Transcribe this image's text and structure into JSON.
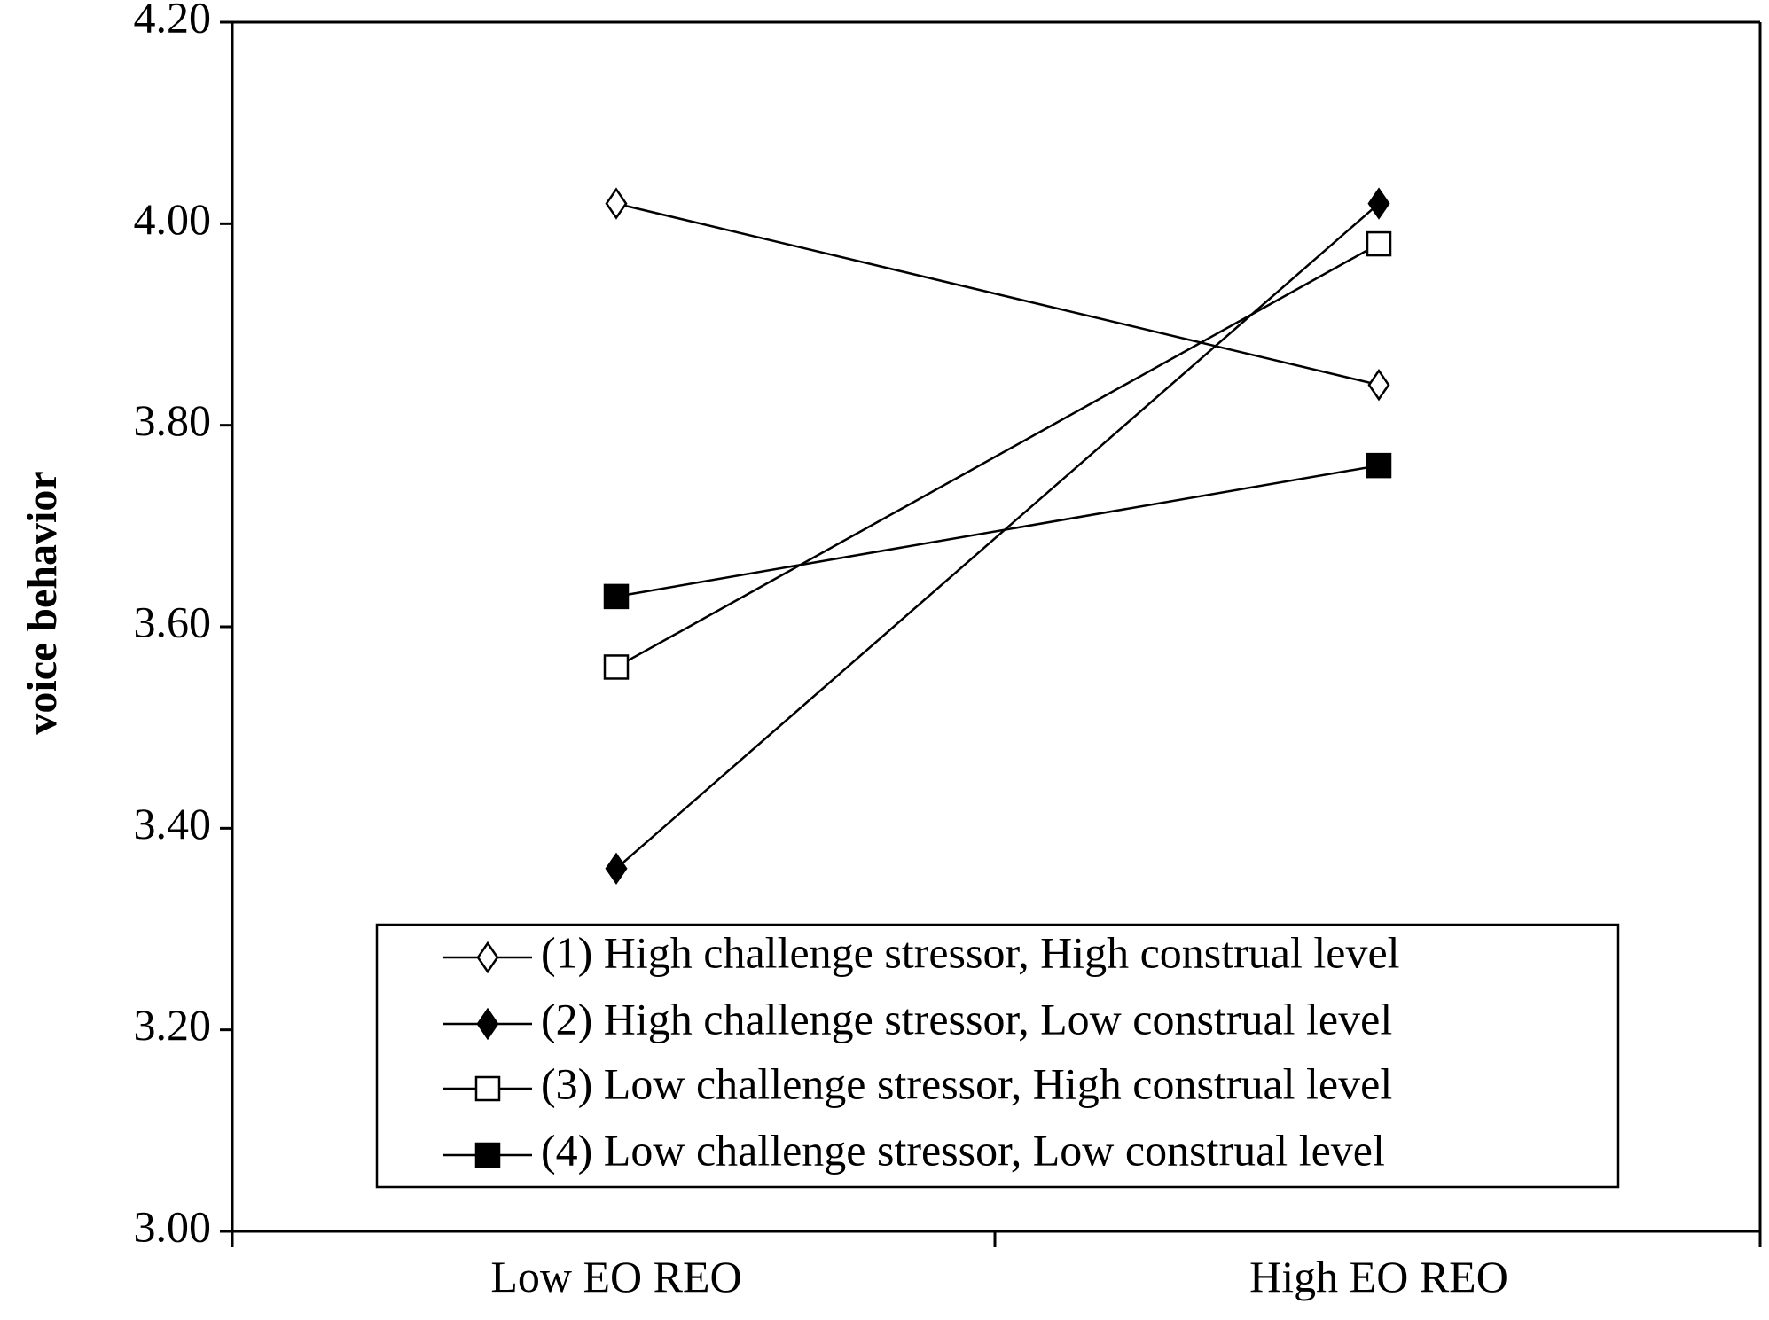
{
  "chart_data": {
    "type": "line",
    "title": "",
    "xlabel": "",
    "ylabel": "voice behavior",
    "categories": [
      "Low EO REO",
      "High EO REO"
    ],
    "ylim": [
      3.0,
      4.2
    ],
    "yticks": [
      "3.00",
      "3.20",
      "3.40",
      "3.60",
      "3.80",
      "4.00",
      "4.20"
    ],
    "grid": false,
    "legend_position": "bottom-right",
    "series": [
      {
        "name": "(1) High challenge stressor, High construal level",
        "values": [
          4.02,
          3.84
        ],
        "marker": "diamond-open",
        "color": "#000000"
      },
      {
        "name": "(2) High challenge stressor, Low construal level",
        "values": [
          3.36,
          4.02
        ],
        "marker": "diamond-filled",
        "color": "#000000"
      },
      {
        "name": "(3) Low challenge stressor, High construal level",
        "values": [
          3.56,
          3.98
        ],
        "marker": "square-open",
        "color": "#000000"
      },
      {
        "name": "(4) Low challenge stressor, Low construal level",
        "values": [
          3.63,
          3.76
        ],
        "marker": "square-filled",
        "color": "#000000"
      }
    ]
  }
}
